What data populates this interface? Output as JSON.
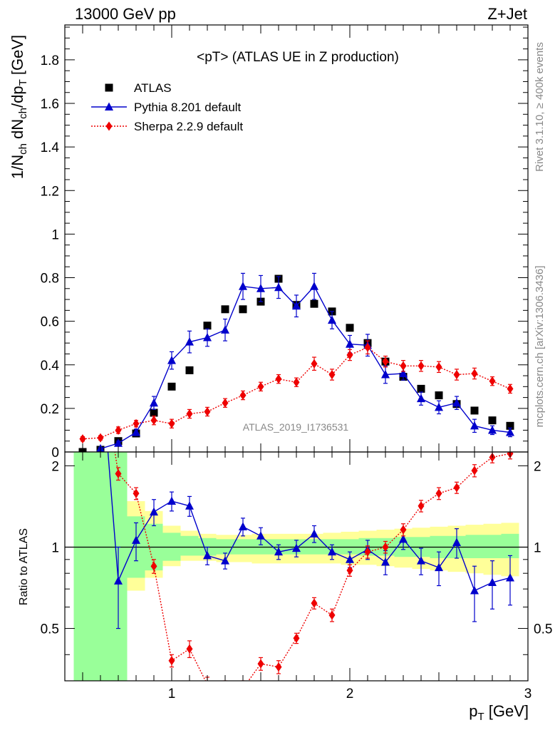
{
  "header": {
    "left": "13000 GeV pp",
    "right": "Z+Jet"
  },
  "side_texts": {
    "rivet": "Rivet 3.1.10, ≥ 400k events",
    "mcplots": "mcplots.cern.ch [arXiv:1306.3436]"
  },
  "chart_data": {
    "type": "scatter",
    "title": "<pT> (ATLAS UE in Z production)",
    "watermark": "ATLAS_2019_I1736531",
    "xlabel": "p_T [GeV]",
    "ylabel": "1/N_ch dN_ch/dp_T [GeV]",
    "ratio_ylabel": "Ratio to ATLAS",
    "xlim": [
      0.4,
      3.0
    ],
    "ylim": [
      0,
      1.96
    ],
    "ratio_ylim": [
      0.32,
      2.25
    ],
    "x_ticks": [
      1,
      2,
      3
    ],
    "y_ticks": [
      0,
      0.2,
      0.4,
      0.6,
      0.8,
      1,
      1.2,
      1.4,
      1.6,
      1.8
    ],
    "y_tick_labels": [
      "0",
      "0.2",
      "0.4",
      "0.6",
      "0.8",
      "1",
      "1.2",
      "1.4",
      "1.6",
      "1.8"
    ],
    "ratio_ticks": [
      0.5,
      1,
      2
    ],
    "ratio_tick_labels": [
      "0.5",
      "1",
      "2"
    ],
    "legend_position": "top-left",
    "x": [
      0.5,
      0.6,
      0.7,
      0.8,
      0.9,
      1.0,
      1.1,
      1.2,
      1.3,
      1.4,
      1.5,
      1.6,
      1.7,
      1.8,
      1.9,
      2.0,
      2.1,
      2.2,
      2.3,
      2.4,
      2.5,
      2.6,
      2.7,
      2.8,
      2.9
    ],
    "series": [
      {
        "name": "ATLAS",
        "marker": "square",
        "color": "#000000",
        "values": [
          0.0,
          0.01,
          0.05,
          0.085,
          0.18,
          0.3,
          0.375,
          0.58,
          0.655,
          0.655,
          0.69,
          0.795,
          0.675,
          0.68,
          0.645,
          0.57,
          0.5,
          0.415,
          0.345,
          0.29,
          0.26,
          0.22,
          0.19,
          0.145,
          0.12
        ]
      },
      {
        "name": "Pythia 8.201 default",
        "marker": "triangle",
        "color": "#0000cc",
        "values": [
          null,
          0.015,
          0.04,
          0.09,
          0.225,
          0.42,
          0.505,
          0.525,
          0.56,
          0.76,
          0.75,
          0.755,
          0.67,
          0.76,
          0.605,
          0.495,
          0.49,
          0.355,
          0.36,
          0.245,
          0.205,
          0.225,
          0.12,
          0.1,
          0.09
        ],
        "errors": [
          null,
          0.005,
          0.01,
          0.015,
          0.03,
          0.04,
          0.05,
          0.04,
          0.05,
          0.06,
          0.06,
          0.05,
          0.05,
          0.06,
          0.04,
          0.04,
          0.05,
          0.04,
          0.03,
          0.03,
          0.03,
          0.03,
          0.03,
          0.02,
          0.02
        ],
        "ratio": [
          null,
          5.0,
          0.75,
          1.06,
          1.35,
          1.48,
          1.42,
          0.93,
          0.89,
          1.19,
          1.1,
          0.96,
          0.99,
          1.12,
          0.96,
          0.9,
          0.98,
          0.88,
          1.07,
          0.89,
          0.84,
          1.04,
          0.69,
          0.74,
          0.77
        ],
        "ratio_errors": [
          null,
          0,
          0.25,
          0.17,
          0.15,
          0.12,
          0.12,
          0.07,
          0.06,
          0.09,
          0.08,
          0.06,
          0.07,
          0.08,
          0.06,
          0.06,
          0.08,
          0.09,
          0.09,
          0.1,
          0.12,
          0.13,
          0.16,
          0.15,
          0.16
        ]
      },
      {
        "name": "Sherpa 2.2.9 default",
        "marker": "diamond",
        "color": "#ee0000",
        "values": [
          0.06,
          0.065,
          0.1,
          0.13,
          0.145,
          0.13,
          0.175,
          0.185,
          0.225,
          0.26,
          0.3,
          0.335,
          0.32,
          0.405,
          0.355,
          0.445,
          0.48,
          0.415,
          0.395,
          0.395,
          0.39,
          0.355,
          0.36,
          0.325,
          0.29
        ],
        "errors": [
          0.01,
          0.01,
          0.015,
          0.015,
          0.02,
          0.02,
          0.02,
          0.02,
          0.02,
          0.02,
          0.02,
          0.02,
          0.02,
          0.03,
          0.025,
          0.025,
          0.03,
          0.025,
          0.025,
          0.025,
          0.025,
          0.025,
          0.025,
          0.02,
          0.02
        ],
        "ratio": [
          null,
          5.0,
          1.87,
          1.58,
          0.85,
          0.38,
          0.42,
          0.31,
          0.3,
          0.3,
          0.37,
          0.36,
          0.46,
          0.62,
          0.56,
          0.82,
          0.96,
          1.0,
          1.16,
          1.42,
          1.58,
          1.66,
          1.92,
          2.15,
          2.22
        ],
        "ratio_errors": [
          null,
          0,
          0.1,
          0.08,
          0.05,
          0.02,
          0.03,
          0.02,
          0.02,
          0.02,
          0.02,
          0.02,
          0.02,
          0.03,
          0.03,
          0.04,
          0.05,
          0.05,
          0.06,
          0.07,
          0.08,
          0.08,
          0.1,
          0.1,
          0.1
        ]
      }
    ],
    "ratio_bands": {
      "edges": [
        0.45,
        0.65,
        0.75,
        0.85,
        0.95,
        1.05,
        1.15,
        1.25,
        1.35,
        1.45,
        1.55,
        1.65,
        1.75,
        1.85,
        1.95,
        2.05,
        2.15,
        2.25,
        2.35,
        2.45,
        2.55,
        2.65,
        2.75,
        2.85,
        2.95
      ],
      "green_lo": [
        0.3,
        0.3,
        0.77,
        0.82,
        0.89,
        0.93,
        0.93,
        0.94,
        0.94,
        0.94,
        0.94,
        0.94,
        0.94,
        0.94,
        0.94,
        0.93,
        0.93,
        0.92,
        0.92,
        0.91,
        0.91,
        0.91,
        0.91,
        0.91
      ],
      "green_hi": [
        2.25,
        2.25,
        1.3,
        1.22,
        1.13,
        1.1,
        1.08,
        1.07,
        1.07,
        1.07,
        1.07,
        1.07,
        1.07,
        1.07,
        1.07,
        1.08,
        1.08,
        1.09,
        1.09,
        1.1,
        1.1,
        1.11,
        1.11,
        1.12
      ],
      "yellow_lo": [
        0.3,
        0.42,
        0.69,
        0.77,
        0.85,
        0.89,
        0.89,
        0.88,
        0.88,
        0.87,
        0.87,
        0.87,
        0.87,
        0.87,
        0.86,
        0.86,
        0.85,
        0.84,
        0.83,
        0.82,
        0.81,
        0.8,
        0.79,
        0.78
      ],
      "yellow_hi": [
        2.25,
        1.6,
        1.48,
        1.36,
        1.2,
        1.15,
        1.12,
        1.11,
        1.11,
        1.12,
        1.12,
        1.12,
        1.12,
        1.13,
        1.14,
        1.15,
        1.16,
        1.17,
        1.18,
        1.19,
        1.2,
        1.21,
        1.22,
        1.23
      ]
    }
  }
}
